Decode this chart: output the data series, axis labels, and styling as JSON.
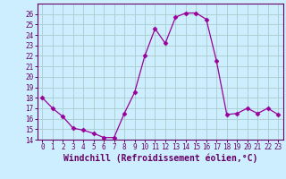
{
  "x": [
    0,
    1,
    2,
    3,
    4,
    5,
    6,
    7,
    8,
    9,
    10,
    11,
    12,
    13,
    14,
    15,
    16,
    17,
    18,
    19,
    20,
    21,
    22,
    23
  ],
  "y": [
    18.0,
    17.0,
    16.2,
    15.1,
    14.9,
    14.6,
    14.2,
    14.2,
    16.5,
    18.5,
    22.0,
    24.6,
    23.2,
    25.7,
    26.1,
    26.1,
    25.5,
    21.5,
    16.4,
    16.5,
    17.0,
    16.5,
    17.0,
    16.4
  ],
  "line_color": "#990099",
  "marker": "D",
  "marker_size": 2.5,
  "bg_color": "#cceeff",
  "grid_color": "#aacccc",
  "xlabel": "Windchill (Refroidissement éolien,°C)",
  "ylim": [
    14,
    27
  ],
  "xlim": [
    -0.5,
    23.5
  ],
  "yticks": [
    14,
    15,
    16,
    17,
    18,
    19,
    20,
    21,
    22,
    23,
    24,
    25,
    26
  ],
  "xticks": [
    0,
    1,
    2,
    3,
    4,
    5,
    6,
    7,
    8,
    9,
    10,
    11,
    12,
    13,
    14,
    15,
    16,
    17,
    18,
    19,
    20,
    21,
    22,
    23
  ],
  "tick_fontsize": 5.5,
  "xlabel_fontsize": 7.0,
  "spine_color": "#660066"
}
